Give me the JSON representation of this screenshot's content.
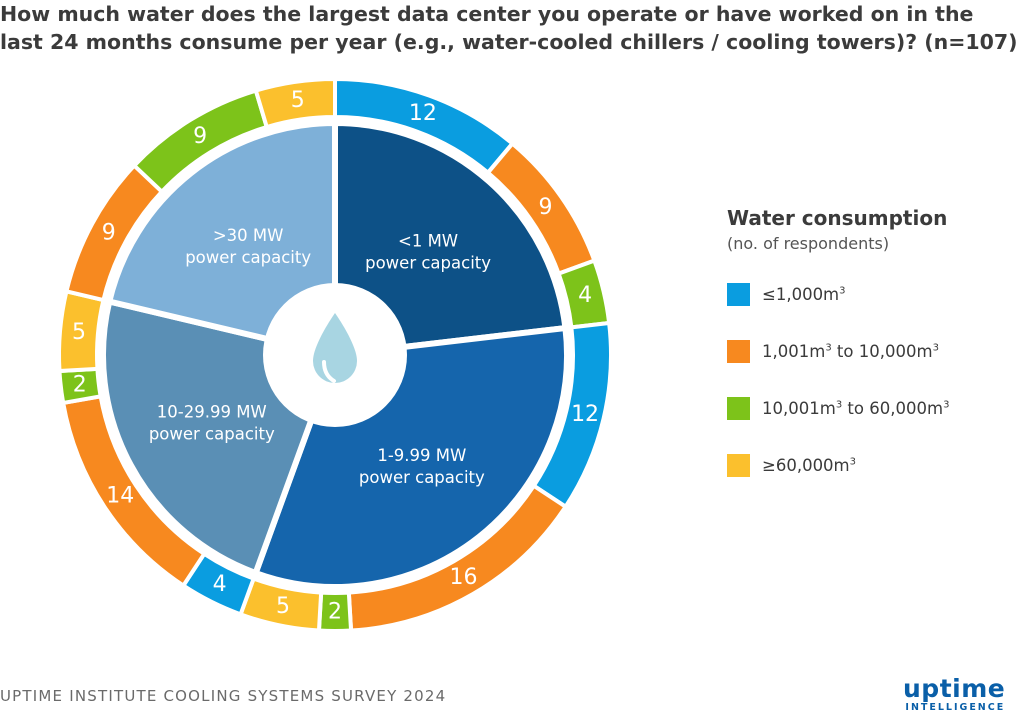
{
  "title": "How much water does the largest data center you operate or have worked on in the last 24 months consume per year (e.g., water-cooled chillers / cooling towers)? (n=107)",
  "chart_data": {
    "type": "pie",
    "subtype": "sunburst",
    "inner": [
      {
        "label_line1": "<1 MW",
        "label_line2": "power capacity",
        "color": "#0d5187",
        "total": 25
      },
      {
        "label_line1": "1-9.99 MW",
        "label_line2": "power capacity",
        "color": "#1565ac",
        "total": 35
      },
      {
        "label_line1": "10-29.99 MW",
        "label_line2": "power capacity",
        "color": "#5a8fb5",
        "total": 25
      },
      {
        "label_line1": ">30 MW",
        "label_line2": "power capacity",
        "color": "#7eb0d8",
        "total": 23
      }
    ],
    "outer": [
      {
        "group": "<1 MW",
        "category": "≤1,000m³",
        "value": 12
      },
      {
        "group": "<1 MW",
        "category": "1,001m³ to 10,000m³",
        "value": 9
      },
      {
        "group": "<1 MW",
        "category": "10,001m³ to 60,000m³",
        "value": 4
      },
      {
        "group": "1-9.99 MW",
        "category": "≤1,000m³",
        "value": 12
      },
      {
        "group": "1-9.99 MW",
        "category": "1,001m³ to 10,000m³",
        "value": 16
      },
      {
        "group": "1-9.99 MW",
        "category": "10,001m³ to 60,000m³",
        "value": 2
      },
      {
        "group": "1-9.99 MW",
        "category": "≥60,000m³",
        "value": 5
      },
      {
        "group": "10-29.99 MW",
        "category": "≤1,000m³",
        "value": 4
      },
      {
        "group": "10-29.99 MW",
        "category": "1,001m³ to 10,000m³",
        "value": 14
      },
      {
        "group": "10-29.99 MW",
        "category": "10,001m³ to 60,000m³",
        "value": 2
      },
      {
        "group": "10-29.99 MW",
        "category": "≥60,000m³",
        "value": 5
      },
      {
        "group": ">30 MW",
        "category": "1,001m³ to 10,000m³",
        "value": 9
      },
      {
        "group": ">30 MW",
        "category": "10,001m³ to 60,000m³",
        "value": 9
      },
      {
        "group": ">30 MW",
        "category": "≥60,000m³",
        "value": 5
      }
    ],
    "legend": {
      "title": "Water consumption",
      "subtitle": "(no. of respondents)",
      "items": [
        {
          "base": "≤1,000m",
          "sup": "3",
          "mid": "",
          "sup2": "",
          "color": "#0a9de0"
        },
        {
          "base": "1,001m",
          "sup": "3",
          "mid": " to 10,000m",
          "sup2": "3",
          "color": "#f7891f"
        },
        {
          "base": "10,001m",
          "sup": "3",
          "mid": " to 60,000m",
          "sup2": "3",
          "color": "#7dc31a"
        },
        {
          "base": "≥60,000m",
          "sup": "3",
          "mid": "",
          "sup2": "",
          "color": "#fbc02d"
        }
      ]
    },
    "center_icon": "water-drop-icon"
  },
  "footer": "UPTIME INSTITUTE COOLING SYSTEMS SURVEY 2024",
  "brand": {
    "name": "uptime",
    "sub": "INTELLIGENCE"
  }
}
